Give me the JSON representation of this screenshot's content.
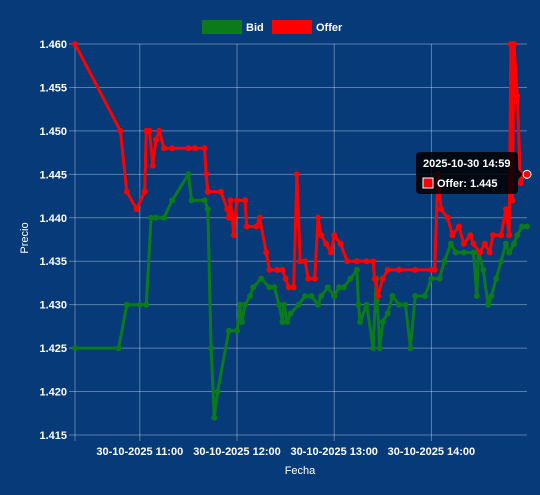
{
  "chart_data": {
    "type": "line",
    "xlabel": "Fecha",
    "ylabel": "Precio",
    "ylim": [
      1.415,
      1.46
    ],
    "y_ticks": [
      "1.460",
      "1.455",
      "1.450",
      "1.445",
      "1.440",
      "1.435",
      "1.430",
      "1.425",
      "1.420",
      "1.415"
    ],
    "x_range": [
      "2025-10-30 10:20",
      "2025-10-30 14:59"
    ],
    "x_ticks": [
      {
        "t": "2025-10-30 11:00",
        "label": "30-10-2025 11:00"
      },
      {
        "t": "2025-10-30 12:00",
        "label": "30-10-2025 12:00"
      },
      {
        "t": "2025-10-30 13:00",
        "label": "30-10-2025 13:00"
      },
      {
        "t": "2025-10-30 14:00",
        "label": "30-10-2025 14:00"
      }
    ],
    "grid": true,
    "legend_position": "top-center",
    "series": [
      {
        "name": "Bid",
        "color": "#0b7a1a",
        "points": [
          [
            "10:20",
            1.425
          ],
          [
            "10:47",
            1.425
          ],
          [
            "10:52",
            1.43
          ],
          [
            "11:00",
            1.43
          ],
          [
            "11:04",
            1.43
          ],
          [
            "11:07",
            1.44
          ],
          [
            "11:10",
            1.44
          ],
          [
            "11:15",
            1.44
          ],
          [
            "11:20",
            1.442
          ],
          [
            "11:30",
            1.445
          ],
          [
            "11:32",
            1.442
          ],
          [
            "11:40",
            1.442
          ],
          [
            "11:42",
            1.441
          ],
          [
            "11:44",
            1.425
          ],
          [
            "11:46",
            1.417
          ],
          [
            "11:48",
            1.42
          ],
          [
            "11:55",
            1.427
          ],
          [
            "12:00",
            1.427
          ],
          [
            "12:02",
            1.43
          ],
          [
            "12:03",
            1.428
          ],
          [
            "12:05",
            1.43
          ],
          [
            "12:08",
            1.431
          ],
          [
            "12:10",
            1.432
          ],
          [
            "12:15",
            1.433
          ],
          [
            "12:20",
            1.432
          ],
          [
            "12:23",
            1.432
          ],
          [
            "12:26",
            1.43
          ],
          [
            "12:28",
            1.428
          ],
          [
            "12:29",
            1.43
          ],
          [
            "12:31",
            1.428
          ],
          [
            "12:33",
            1.429
          ],
          [
            "12:38",
            1.43
          ],
          [
            "12:42",
            1.431
          ],
          [
            "12:46",
            1.431
          ],
          [
            "12:50",
            1.43
          ],
          [
            "12:52",
            1.431
          ],
          [
            "12:56",
            1.432
          ],
          [
            "13:00",
            1.431
          ],
          [
            "13:03",
            1.432
          ],
          [
            "13:06",
            1.432
          ],
          [
            "13:10",
            1.433
          ],
          [
            "13:14",
            1.434
          ],
          [
            "13:15",
            1.43
          ],
          [
            "13:16",
            1.428
          ],
          [
            "13:20",
            1.43
          ],
          [
            "13:24",
            1.425
          ],
          [
            "13:26",
            1.433
          ],
          [
            "13:28",
            1.425
          ],
          [
            "13:30",
            1.428
          ],
          [
            "13:33",
            1.429
          ],
          [
            "13:36",
            1.431
          ],
          [
            "13:40",
            1.43
          ],
          [
            "13:44",
            1.43
          ],
          [
            "13:47",
            1.425
          ],
          [
            "13:50",
            1.431
          ],
          [
            "13:56",
            1.431
          ],
          [
            "14:00",
            1.433
          ],
          [
            "14:05",
            1.433
          ],
          [
            "14:08",
            1.435
          ],
          [
            "14:12",
            1.437
          ],
          [
            "14:15",
            1.436
          ],
          [
            "14:20",
            1.436
          ],
          [
            "14:26",
            1.436
          ],
          [
            "14:28",
            1.431
          ],
          [
            "14:29",
            1.436
          ],
          [
            "14:32",
            1.434
          ],
          [
            "14:35",
            1.43
          ],
          [
            "14:37",
            1.431
          ],
          [
            "14:40",
            1.433
          ],
          [
            "14:43",
            1.435
          ],
          [
            "14:46",
            1.437
          ],
          [
            "14:48",
            1.436
          ],
          [
            "14:51",
            1.437
          ],
          [
            "14:53",
            1.438
          ],
          [
            "14:56",
            1.439
          ],
          [
            "14:59",
            1.439
          ]
        ]
      },
      {
        "name": "Offer",
        "color": "#ff0000",
        "points": [
          [
            "10:20",
            1.46
          ],
          [
            "10:48",
            1.45
          ],
          [
            "10:52",
            1.443
          ],
          [
            "10:58",
            1.441
          ],
          [
            "11:03",
            1.443
          ],
          [
            "11:04",
            1.45
          ],
          [
            "11:06",
            1.45
          ],
          [
            "11:08",
            1.446
          ],
          [
            "11:10",
            1.449
          ],
          [
            "11:12",
            1.45
          ],
          [
            "11:15",
            1.448
          ],
          [
            "11:20",
            1.448
          ],
          [
            "11:30",
            1.448
          ],
          [
            "11:34",
            1.448
          ],
          [
            "11:40",
            1.448
          ],
          [
            "11:41",
            1.445
          ],
          [
            "11:42",
            1.443
          ],
          [
            "11:50",
            1.443
          ],
          [
            "11:54",
            1.441
          ],
          [
            "11:55",
            1.44
          ],
          [
            "11:56",
            1.442
          ],
          [
            "11:58",
            1.438
          ],
          [
            "12:00",
            1.442
          ],
          [
            "12:05",
            1.442
          ],
          [
            "12:06",
            1.439
          ],
          [
            "12:12",
            1.439
          ],
          [
            "12:14",
            1.44
          ],
          [
            "12:18",
            1.436
          ],
          [
            "12:20",
            1.434
          ],
          [
            "12:25",
            1.434
          ],
          [
            "12:28",
            1.434
          ],
          [
            "12:30",
            1.433
          ],
          [
            "12:32",
            1.432
          ],
          [
            "12:35",
            1.432
          ],
          [
            "12:37",
            1.445
          ],
          [
            "12:39",
            1.435
          ],
          [
            "12:42",
            1.435
          ],
          [
            "12:44",
            1.433
          ],
          [
            "12:48",
            1.433
          ],
          [
            "12:50",
            1.44
          ],
          [
            "12:52",
            1.438
          ],
          [
            "12:55",
            1.437
          ],
          [
            "12:58",
            1.436
          ],
          [
            "13:00",
            1.438
          ],
          [
            "13:04",
            1.437
          ],
          [
            "13:08",
            1.435
          ],
          [
            "13:14",
            1.435
          ],
          [
            "13:20",
            1.435
          ],
          [
            "13:24",
            1.435
          ],
          [
            "13:25",
            1.433
          ],
          [
            "13:27",
            1.431
          ],
          [
            "13:30",
            1.433
          ],
          [
            "13:33",
            1.434
          ],
          [
            "13:40",
            1.434
          ],
          [
            "13:50",
            1.434
          ],
          [
            "14:00",
            1.434
          ],
          [
            "14:02",
            1.434
          ],
          [
            "14:04",
            1.445
          ],
          [
            "14:06",
            1.441
          ],
          [
            "14:10",
            1.44
          ],
          [
            "14:13",
            1.438
          ],
          [
            "14:17",
            1.439
          ],
          [
            "14:20",
            1.437
          ],
          [
            "14:24",
            1.438
          ],
          [
            "14:26",
            1.437
          ],
          [
            "14:30",
            1.436
          ],
          [
            "14:33",
            1.437
          ],
          [
            "14:36",
            1.436
          ],
          [
            "14:38",
            1.438
          ],
          [
            "14:43",
            1.438
          ],
          [
            "14:46",
            1.441
          ],
          [
            "14:48",
            1.438
          ],
          [
            "14:49",
            1.46
          ],
          [
            "14:50",
            1.442
          ],
          [
            "14:51",
            1.46
          ],
          [
            "14:53",
            1.454
          ],
          [
            "14:55",
            1.444
          ],
          [
            "14:57",
            1.445
          ],
          [
            "14:59",
            1.445
          ]
        ]
      }
    ],
    "tooltip": {
      "title": "2025-10-30 14:59",
      "body": "Offer: 1.445",
      "series": "Offer",
      "time": "14:59",
      "value": 1.445
    }
  }
}
